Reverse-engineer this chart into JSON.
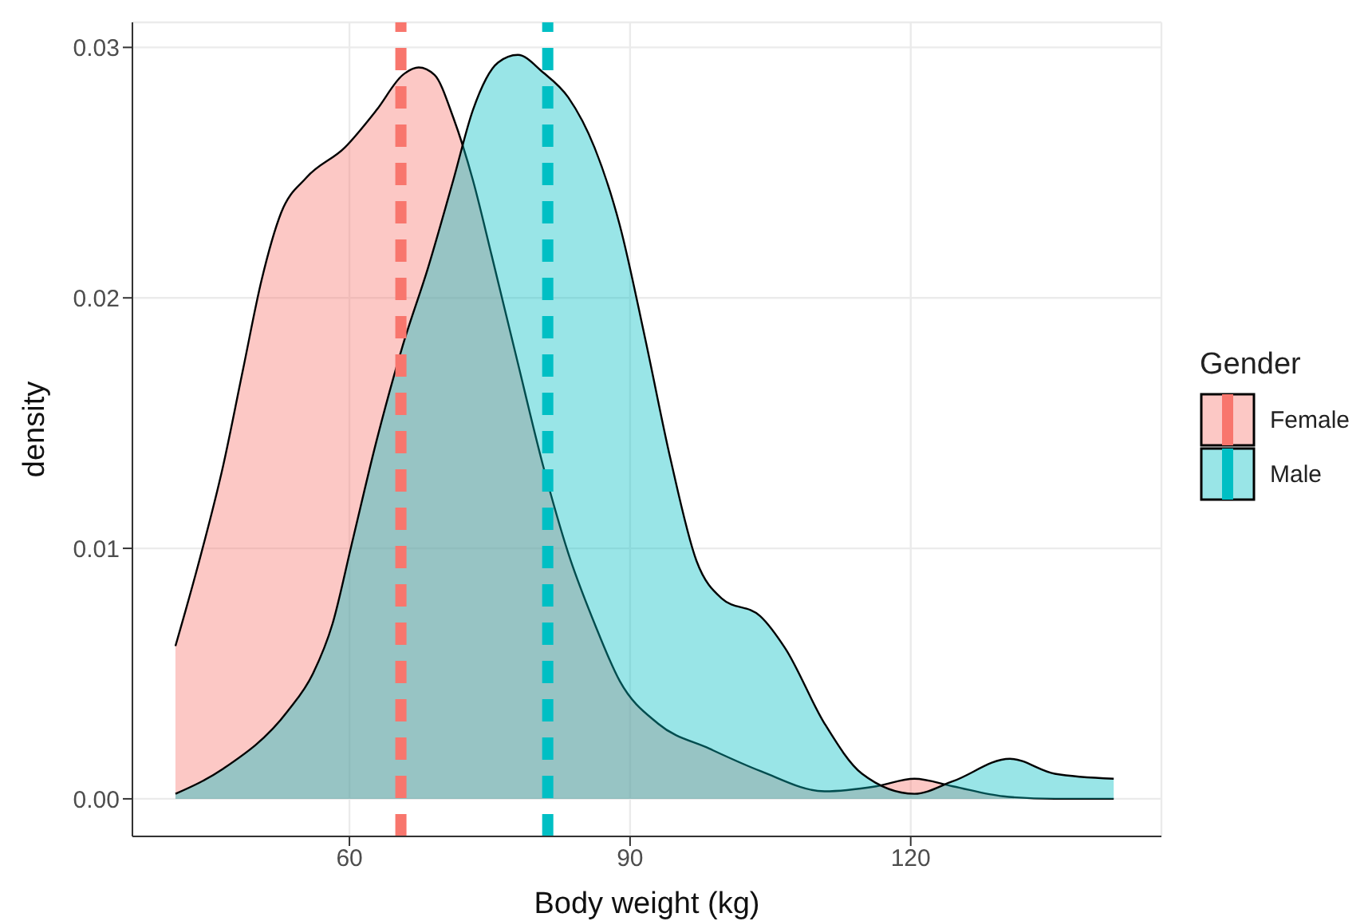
{
  "chart_data": {
    "type": "area",
    "xlabel": "Body weight (kg)",
    "ylabel": "density",
    "legend_title": "Gender",
    "legend": "right",
    "grid": true,
    "xlim": [
      36.8,
      146.8
    ],
    "xticks": [
      60,
      90,
      120
    ],
    "ylim": [
      -0.0015,
      0.031
    ],
    "yticks": [
      {
        "value": 0,
        "label": "0.00"
      },
      {
        "value": 0.01,
        "label": "0.01"
      },
      {
        "value": 0.02,
        "label": "0.02"
      },
      {
        "value": 0.03,
        "label": "0.03"
      }
    ],
    "series": [
      {
        "name": "Female",
        "color": "#f8766d",
        "x": [
          41.4,
          43.8,
          46.5,
          48.6,
          50.6,
          52.7,
          55.4,
          59.5,
          62.9,
          65.7,
          67.4,
          69.1,
          71.1,
          73.2,
          75.2,
          78.0,
          80.7,
          83.4,
          86.2,
          88.9,
          93.0,
          98.5,
          104.0,
          110.8,
          116.3,
          120.4,
          124.5,
          129.9,
          135.4,
          141.7
        ],
        "values": [
          0.0061,
          0.0093,
          0.0133,
          0.0171,
          0.0207,
          0.0234,
          0.0248,
          0.026,
          0.0275,
          0.0289,
          0.0292,
          0.0289,
          0.0272,
          0.0247,
          0.0217,
          0.0174,
          0.0133,
          0.0098,
          0.007,
          0.0047,
          0.003,
          0.002,
          0.0011,
          0.0003,
          0.0005,
          0.0008,
          0.0005,
          0.0001,
          0,
          0
        ]
      },
      {
        "name": "Male",
        "color": "#00bfc4",
        "x": [
          41.4,
          46.5,
          53.4,
          56.1,
          58.2,
          60.2,
          62.9,
          65.7,
          68.4,
          71.1,
          73.2,
          75.9,
          78.0,
          80.7,
          83.4,
          86.2,
          88.9,
          91.6,
          94.3,
          97.1,
          99.8,
          103.9,
          106.6,
          110.8,
          114.8,
          120.4,
          124.5,
          130.6,
          135.4,
          141.7
        ],
        "values": [
          0.0002,
          0.0012,
          0.0035,
          0.005,
          0.007,
          0.0101,
          0.0143,
          0.0181,
          0.0212,
          0.0247,
          0.0275,
          0.0294,
          0.0297,
          0.029,
          0.028,
          0.026,
          0.0229,
          0.0184,
          0.0136,
          0.0095,
          0.008,
          0.0073,
          0.006,
          0.003,
          0.001,
          0.0002,
          0.0007,
          0.0016,
          0.001,
          0.0008
        ]
      }
    ],
    "ref_lines": [
      {
        "axis": "x",
        "value": 65.5,
        "color": "#f8766d",
        "line_style": "dashed"
      },
      {
        "axis": "x",
        "value": 81.2,
        "color": "#00bfc4",
        "line_style": "dashed"
      }
    ]
  }
}
